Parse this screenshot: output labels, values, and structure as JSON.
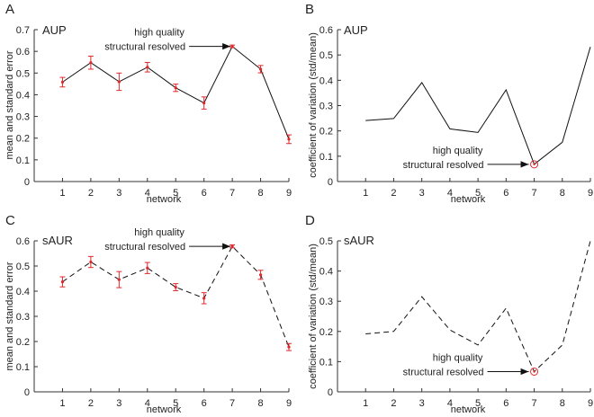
{
  "chart_data": [
    {
      "type": "line",
      "letter": "A",
      "title": "AUP",
      "xlabel": "network",
      "ylabel": "mean and standard error",
      "xlim": [
        0,
        9
      ],
      "ylim": [
        0,
        0.7
      ],
      "x_ticks": [
        1,
        2,
        3,
        4,
        5,
        6,
        7,
        8,
        9
      ],
      "y_ticks": [
        "0",
        "0.1",
        "0.2",
        "0.3",
        "0.4",
        "0.5",
        "0.6",
        "0.7"
      ],
      "line_style": "solid",
      "series": [
        {
          "name": "mean",
          "x": [
            1,
            2,
            3,
            4,
            5,
            6,
            7,
            8,
            9
          ],
          "values": [
            0.458,
            0.548,
            0.46,
            0.527,
            0.432,
            0.362,
            0.623,
            0.518,
            0.195
          ],
          "errors": [
            0.022,
            0.03,
            0.04,
            0.022,
            0.017,
            0.028,
            0.006,
            0.017,
            0.02
          ]
        }
      ],
      "annotation": {
        "line1": "high quality",
        "line2": "structural resolved",
        "target_x": 7,
        "target_y": 0.623
      }
    },
    {
      "type": "line",
      "letter": "B",
      "title": "AUP",
      "xlabel": "network",
      "ylabel": "coefficient of variation (std/mean)",
      "xlim": [
        0,
        9
      ],
      "ylim": [
        0,
        0.6
      ],
      "x_ticks": [
        1,
        2,
        3,
        4,
        5,
        6,
        7,
        8,
        9
      ],
      "y_ticks": [
        "0",
        "0.1",
        "0.2",
        "0.3",
        "0.4",
        "0.5",
        "0.6"
      ],
      "line_style": "solid",
      "series": [
        {
          "name": "coefficient of variation",
          "x": [
            1,
            2,
            3,
            4,
            5,
            6,
            7,
            8,
            9
          ],
          "values": [
            0.241,
            0.249,
            0.391,
            0.208,
            0.194,
            0.362,
            0.068,
            0.155,
            0.532
          ]
        }
      ],
      "marked_point": {
        "x": 7,
        "y": 0.068
      },
      "annotation": {
        "line1": "high quality",
        "line2": "structural resolved",
        "target_x": 7,
        "target_y": 0.068
      }
    },
    {
      "type": "line",
      "letter": "C",
      "title": "sAUR",
      "xlabel": "network",
      "ylabel": "mean and standard error",
      "xlim": [
        0,
        9
      ],
      "ylim": [
        0,
        0.6
      ],
      "x_ticks": [
        1,
        2,
        3,
        4,
        5,
        6,
        7,
        8,
        9
      ],
      "y_ticks": [
        "0",
        "0.1",
        "0.2",
        "0.3",
        "0.4",
        "0.5",
        "0.6"
      ],
      "line_style": "dashed",
      "series": [
        {
          "name": "mean",
          "x": [
            1,
            2,
            3,
            4,
            5,
            6,
            7,
            8,
            9
          ],
          "values": [
            0.437,
            0.516,
            0.446,
            0.492,
            0.416,
            0.372,
            0.578,
            0.465,
            0.178
          ],
          "errors": [
            0.02,
            0.022,
            0.032,
            0.022,
            0.014,
            0.022,
            0.006,
            0.018,
            0.014
          ]
        }
      ],
      "annotation": {
        "line1": "high quality",
        "line2": "structural resolved",
        "target_x": 7,
        "target_y": 0.578
      }
    },
    {
      "type": "line",
      "letter": "D",
      "title": "sAUR",
      "xlabel": "network",
      "ylabel": "coefficient of variation (std/mean)",
      "xlim": [
        0,
        9
      ],
      "ylim": [
        0,
        0.5
      ],
      "x_ticks": [
        1,
        2,
        3,
        4,
        5,
        6,
        7,
        8,
        9
      ],
      "y_ticks": [
        "0",
        "0.1",
        "0.2",
        "0.3",
        "0.4",
        "0.5"
      ],
      "line_style": "dashed",
      "series": [
        {
          "name": "coefficient of variation",
          "x": [
            1,
            2,
            3,
            4,
            5,
            6,
            7,
            8,
            9
          ],
          "values": [
            0.192,
            0.2,
            0.315,
            0.205,
            0.155,
            0.277,
            0.067,
            0.155,
            0.5
          ]
        }
      ],
      "marked_point": {
        "x": 7,
        "y": 0.067
      },
      "annotation": {
        "line1": "high quality",
        "line2": "structural resolved",
        "target_x": 7,
        "target_y": 0.067
      }
    }
  ],
  "colors": {
    "axis": "#333333",
    "line": "#111111",
    "error": "#e0282c",
    "text": "#222222"
  }
}
